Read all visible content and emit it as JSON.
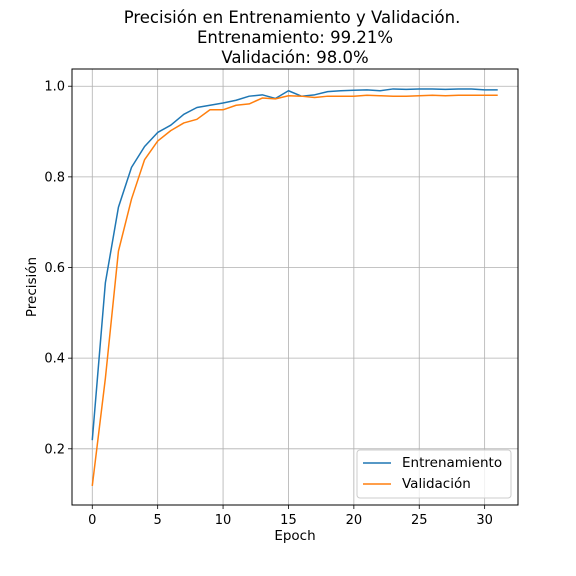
{
  "chart_data": {
    "type": "line",
    "title": [
      "Precisión en Entrenamiento y Validación.",
      "Entrenamiento: 99.21%",
      "Validación: 98.0%"
    ],
    "xlabel": "Epoch",
    "ylabel": "Precisión",
    "xlim": [
      -1.55,
      32.55
    ],
    "ylim": [
      0.076,
      1.038
    ],
    "xticks": [
      0,
      5,
      10,
      15,
      20,
      25,
      30
    ],
    "yticks": [
      0.2,
      0.4,
      0.6,
      0.8,
      1.0
    ],
    "grid": true,
    "legend_position": "lower right",
    "x": [
      0,
      1,
      2,
      3,
      4,
      5,
      6,
      7,
      8,
      9,
      10,
      11,
      12,
      13,
      14,
      15,
      16,
      17,
      18,
      19,
      20,
      21,
      22,
      23,
      24,
      25,
      26,
      27,
      28,
      29,
      30,
      31
    ],
    "series": [
      {
        "name": "Entrenamiento",
        "color": "#1f77b4",
        "values": [
          0.219,
          0.566,
          0.733,
          0.821,
          0.867,
          0.898,
          0.914,
          0.938,
          0.953,
          0.958,
          0.963,
          0.969,
          0.978,
          0.981,
          0.973,
          0.99,
          0.978,
          0.981,
          0.988,
          0.99,
          0.991,
          0.992,
          0.99,
          0.994,
          0.993,
          0.994,
          0.994,
          0.993,
          0.994,
          0.994,
          0.992,
          0.992
        ]
      },
      {
        "name": "Validación",
        "color": "#ff7f0e",
        "values": [
          0.118,
          0.355,
          0.636,
          0.751,
          0.838,
          0.879,
          0.902,
          0.919,
          0.927,
          0.948,
          0.948,
          0.958,
          0.961,
          0.974,
          0.972,
          0.979,
          0.978,
          0.975,
          0.978,
          0.978,
          0.978,
          0.98,
          0.979,
          0.978,
          0.978,
          0.979,
          0.98,
          0.979,
          0.98,
          0.98,
          0.98,
          0.98
        ]
      }
    ]
  }
}
